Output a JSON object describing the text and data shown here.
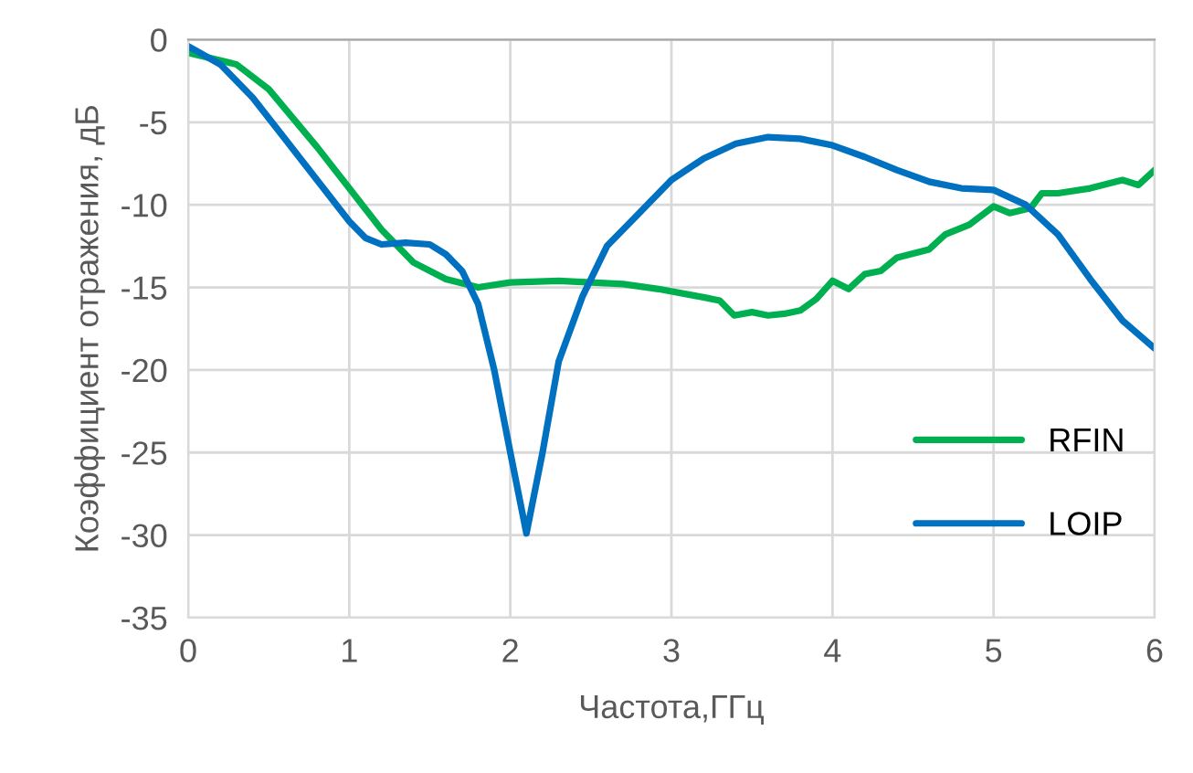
{
  "chart_data": {
    "type": "line",
    "xlabel": "Частота,ГГц",
    "ylabel": "Коэффициент отражения, дБ",
    "xlim": [
      0,
      6
    ],
    "xticks": [
      0,
      1,
      2,
      3,
      4,
      5,
      6
    ],
    "ylim": [
      -35,
      0
    ],
    "yticks": [
      -35,
      -30,
      -25,
      -20,
      -15,
      -10,
      -5,
      0
    ],
    "grid": true,
    "legend": "lower right",
    "marker": "none",
    "line_style": "solid",
    "series": [
      {
        "name": "RFIN",
        "color": "#00b050",
        "x": [
          0,
          0.3,
          0.5,
          0.8,
          1.0,
          1.2,
          1.4,
          1.6,
          1.8,
          2.0,
          2.3,
          2.5,
          2.7,
          2.92,
          3.2,
          3.3,
          3.39,
          3.5,
          3.6,
          3.7,
          3.8,
          3.9,
          4.0,
          4.1,
          4.2,
          4.3,
          4.4,
          4.6,
          4.7,
          4.85,
          5.0,
          5.1,
          5.23,
          5.3,
          5.4,
          5.6,
          5.8,
          5.9,
          6.0
        ],
        "values": [
          -0.8,
          -1.5,
          -3,
          -6.5,
          -9,
          -11.5,
          -13.5,
          -14.5,
          -15,
          -14.7,
          -14.6,
          -14.7,
          -14.8,
          -15.1,
          -15.6,
          -15.8,
          -16.7,
          -16.5,
          -16.7,
          -16.6,
          -16.4,
          -15.7,
          -14.6,
          -15.1,
          -14.2,
          -14.0,
          -13.2,
          -12.7,
          -11.8,
          -11.2,
          -10.1,
          -10.5,
          -10.2,
          -9.3,
          -9.3,
          -9.0,
          -8.5,
          -8.8,
          -7.9
        ]
      },
      {
        "name": "LOIP",
        "color": "#0070c0",
        "x": [
          0,
          0.2,
          0.4,
          0.6,
          0.8,
          1.0,
          1.1,
          1.2,
          1.35,
          1.5,
          1.6,
          1.7,
          1.8,
          1.9,
          2.0,
          2.1,
          2.2,
          2.3,
          2.45,
          2.6,
          2.8,
          3.0,
          3.2,
          3.4,
          3.6,
          3.8,
          4.0,
          4.2,
          4.4,
          4.6,
          4.8,
          5.0,
          5.2,
          5.4,
          5.6,
          5.8,
          6.0
        ],
        "values": [
          -0.4,
          -1.5,
          -3.5,
          -6,
          -8.5,
          -11,
          -12,
          -12.4,
          -12.3,
          -12.4,
          -13,
          -14,
          -16,
          -20,
          -25,
          -29.9,
          -25,
          -19.5,
          -15.5,
          -12.5,
          -10.5,
          -8.5,
          -7.2,
          -6.3,
          -5.9,
          -6.0,
          -6.4,
          -7.1,
          -7.9,
          -8.6,
          -9.0,
          -9.1,
          -10.0,
          -11.8,
          -14.5,
          -17.0,
          -18.7
        ]
      }
    ]
  }
}
